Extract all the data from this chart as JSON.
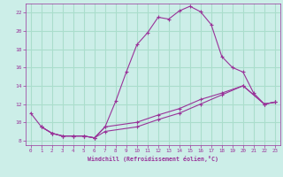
{
  "xlabel": "Windchill (Refroidissement éolien,°C)",
  "background_color": "#cceee8",
  "grid_color": "#aaddcc",
  "line_color": "#993399",
  "xlim": [
    -0.5,
    23.5
  ],
  "ylim": [
    7.5,
    23.0
  ],
  "xticks": [
    0,
    1,
    2,
    3,
    4,
    5,
    6,
    7,
    8,
    9,
    10,
    11,
    12,
    13,
    14,
    15,
    16,
    17,
    18,
    19,
    20,
    21,
    22,
    23
  ],
  "yticks": [
    8,
    10,
    12,
    14,
    16,
    18,
    20,
    22
  ],
  "line1_x": [
    0,
    1,
    2,
    3,
    4,
    5,
    6,
    7,
    8,
    9,
    10,
    11,
    12,
    13,
    14,
    15,
    16,
    17,
    18,
    19,
    20,
    21,
    22,
    23
  ],
  "line1_y": [
    11.0,
    9.5,
    8.8,
    8.5,
    8.5,
    8.5,
    8.3,
    9.5,
    12.3,
    15.5,
    18.5,
    19.8,
    21.5,
    21.3,
    22.2,
    22.7,
    22.1,
    20.7,
    17.2,
    16.0,
    15.5,
    13.2,
    12.0,
    12.2
  ],
  "line2_x": [
    1,
    2,
    3,
    4,
    5,
    6,
    7,
    10,
    12,
    14,
    16,
    18,
    20,
    22,
    23
  ],
  "line2_y": [
    9.5,
    8.8,
    8.5,
    8.5,
    8.5,
    8.3,
    9.5,
    10.0,
    10.8,
    11.5,
    12.5,
    13.2,
    14.0,
    12.0,
    12.2
  ],
  "line3_x": [
    1,
    2,
    3,
    4,
    5,
    6,
    7,
    10,
    12,
    14,
    16,
    18,
    20,
    22,
    23
  ],
  "line3_y": [
    9.5,
    8.8,
    8.5,
    8.5,
    8.5,
    8.3,
    9.0,
    9.5,
    10.3,
    11.0,
    12.0,
    13.0,
    14.0,
    12.0,
    12.2
  ]
}
